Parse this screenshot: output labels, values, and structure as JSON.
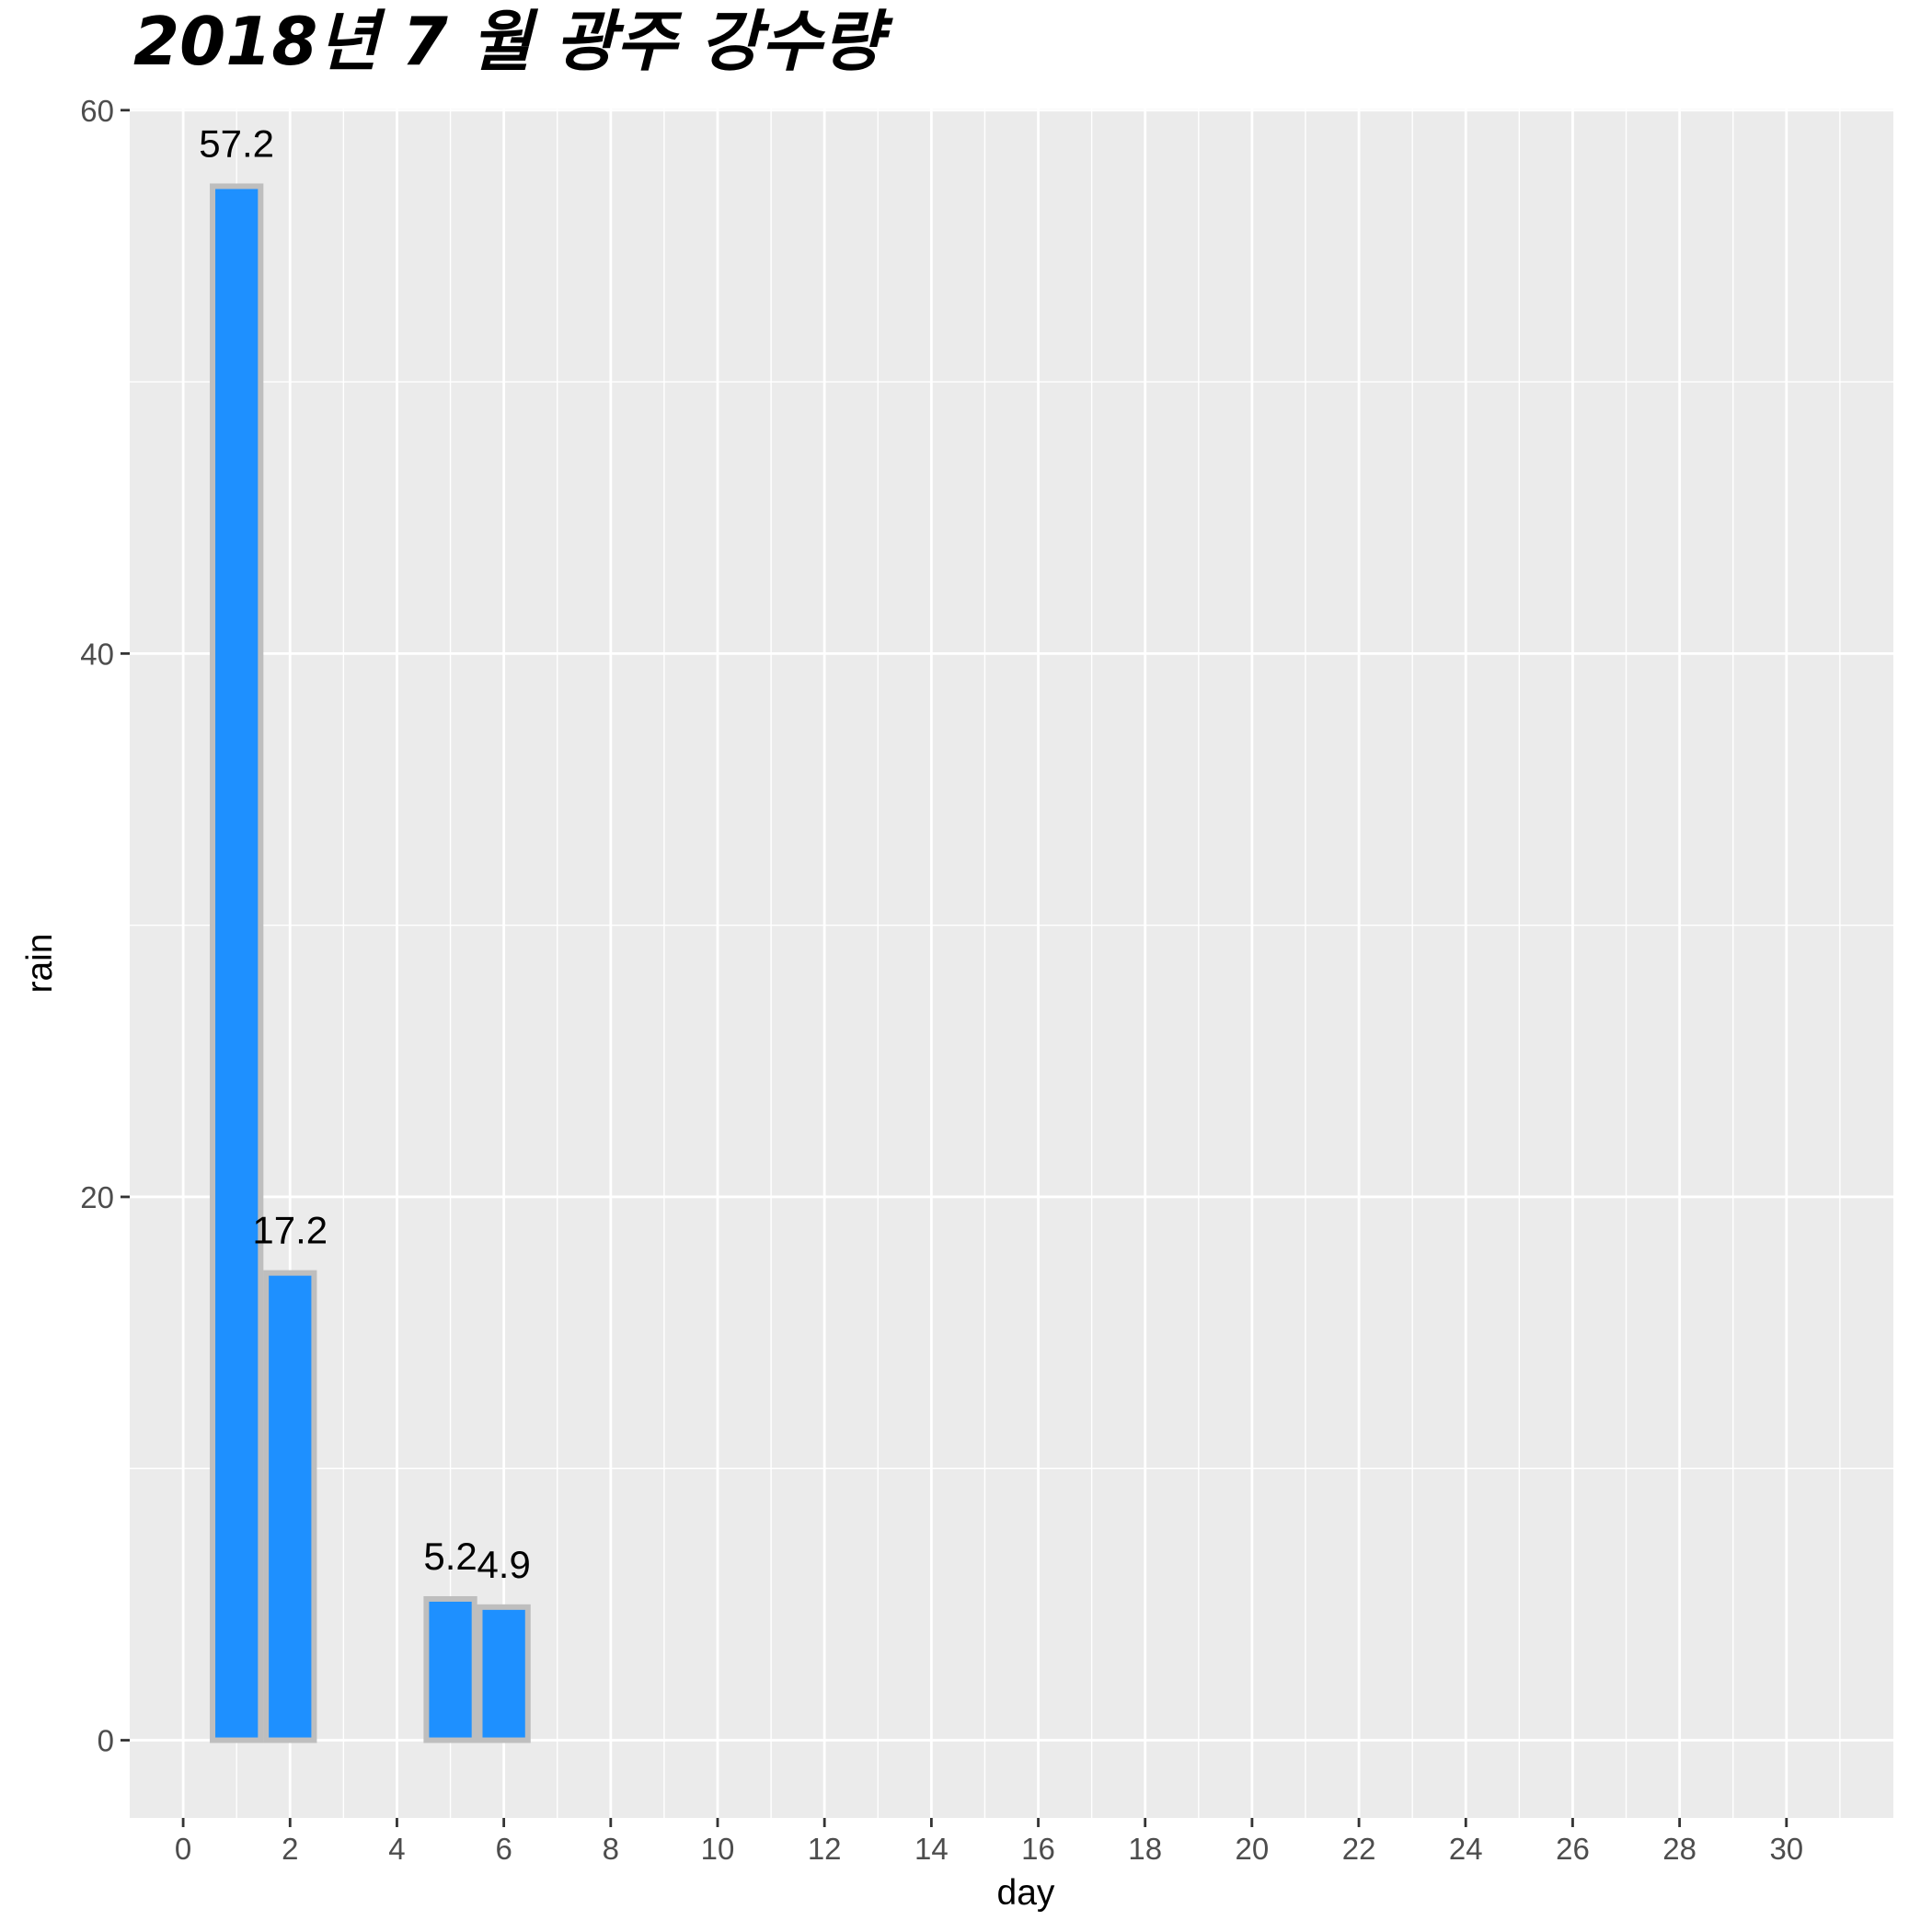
{
  "chart_data": {
    "type": "bar",
    "title": "2018년 7 월 광주 강수량",
    "xlabel": "day",
    "ylabel": "rain",
    "x": [
      1,
      2,
      5,
      6
    ],
    "values": [
      57.2,
      17.2,
      5.2,
      4.9
    ],
    "data_labels": [
      "57.2",
      "17.2",
      "5.2",
      "4.9"
    ],
    "xlim": [
      -1,
      32
    ],
    "ylim": [
      -2.86,
      60.06
    ],
    "x_ticks": [
      0,
      2,
      4,
      6,
      8,
      10,
      12,
      14,
      16,
      18,
      20,
      22,
      24,
      26,
      28,
      30
    ],
    "y_ticks": [
      0,
      20,
      40,
      60
    ],
    "bar_fill": "#1E90FF",
    "bar_outline": "#BEBEBE",
    "panel_background": "#EBEBEB",
    "grid": true,
    "legend": "none"
  }
}
